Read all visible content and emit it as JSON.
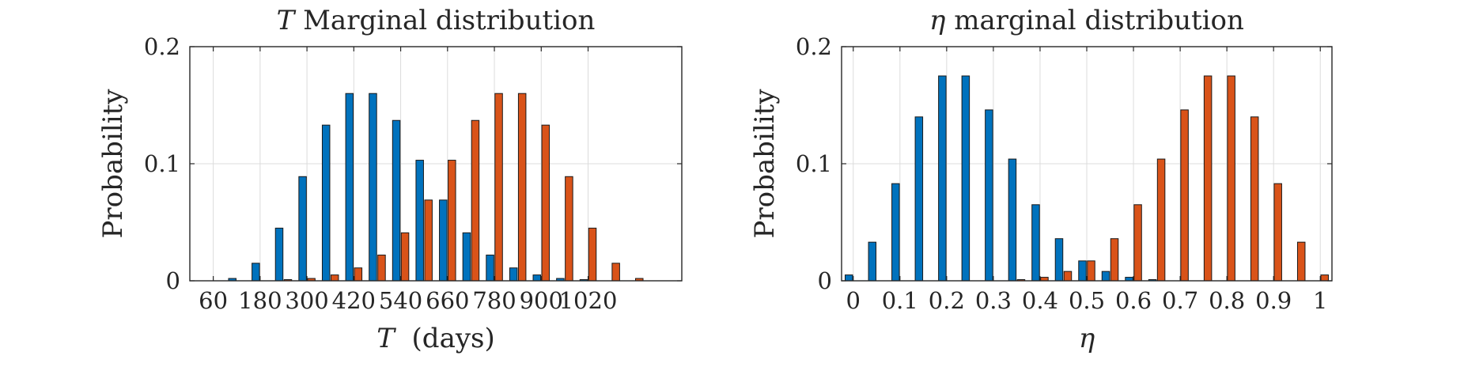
{
  "chart_data": [
    {
      "type": "bar",
      "title": "T Marginal distribution",
      "title_symbol": "T",
      "title_rest": " Marginal distribution",
      "xlabel": "T  (days)",
      "xlabel_symbol": "T",
      "xlabel_rest": "  (days)",
      "ylabel": "Probability",
      "ylim": [
        0,
        0.2
      ],
      "xlim": [
        0,
        1260
      ],
      "yticks": [
        0,
        0.1,
        0.2
      ],
      "ytick_labels": [
        "0",
        "0.1",
        "0.2"
      ],
      "xticks": [
        60,
        180,
        300,
        420,
        540,
        660,
        780,
        900,
        1020
      ],
      "xtick_labels": [
        "60",
        "180",
        "300",
        "420",
        "540",
        "660",
        "780",
        "900",
        "1020"
      ],
      "grid": true,
      "x": [
        60,
        120,
        180,
        240,
        300,
        360,
        420,
        480,
        540,
        600,
        660,
        720,
        780,
        840,
        900,
        960,
        1020,
        1080,
        1140,
        1200
      ],
      "series": [
        {
          "color": "#0072BD",
          "values": [
            0.0,
            0.002,
            0.015,
            0.045,
            0.089,
            0.133,
            0.16,
            0.16,
            0.137,
            0.103,
            0.069,
            0.041,
            0.022,
            0.011,
            0.005,
            0.002,
            0.001,
            0.0,
            0.0,
            0.0
          ]
        },
        {
          "color": "#D95319",
          "values": [
            0.0,
            0.0,
            0.0,
            0.001,
            0.002,
            0.005,
            0.011,
            0.022,
            0.041,
            0.069,
            0.103,
            0.137,
            0.16,
            0.16,
            0.133,
            0.089,
            0.045,
            0.015,
            0.002,
            0.0
          ]
        }
      ]
    },
    {
      "type": "bar",
      "title": "η marginal distribution",
      "title_symbol": "η",
      "title_rest": " marginal distribution",
      "xlabel": "η",
      "xlabel_symbol": "η",
      "xlabel_rest": "",
      "ylabel": "Probability",
      "ylim": [
        0,
        0.2
      ],
      "xlim": [
        -0.025,
        1.025
      ],
      "yticks": [
        0,
        0.1,
        0.2
      ],
      "ytick_labels": [
        "0",
        "0.1",
        "0.2"
      ],
      "xticks": [
        0,
        0.1,
        0.2,
        0.3,
        0.4,
        0.5,
        0.6,
        0.7,
        0.8,
        0.9,
        1
      ],
      "xtick_labels": [
        "0",
        "0.1",
        "0.2",
        "0.3",
        "0.4",
        "0.5",
        "0.6",
        "0.7",
        "0.8",
        "0.9",
        "1"
      ],
      "grid": true,
      "x": [
        0,
        0.05,
        0.1,
        0.15,
        0.2,
        0.25,
        0.3,
        0.35,
        0.4,
        0.45,
        0.5,
        0.55,
        0.6,
        0.65,
        0.7,
        0.75,
        0.8,
        0.85,
        0.9,
        0.95,
        1
      ],
      "series": [
        {
          "color": "#0072BD",
          "values": [
            0.005,
            0.033,
            0.083,
            0.14,
            0.175,
            0.175,
            0.146,
            0.104,
            0.065,
            0.036,
            0.017,
            0.008,
            0.003,
            0.001,
            0.0,
            0.0,
            0.0,
            0.0,
            0.0,
            0.0,
            0.0
          ]
        },
        {
          "color": "#D95319",
          "values": [
            0.0,
            0.0,
            0.0,
            0.0,
            0.0,
            0.0,
            0.0,
            0.001,
            0.003,
            0.008,
            0.017,
            0.036,
            0.065,
            0.104,
            0.146,
            0.175,
            0.175,
            0.14,
            0.083,
            0.033,
            0.005
          ]
        }
      ]
    }
  ]
}
